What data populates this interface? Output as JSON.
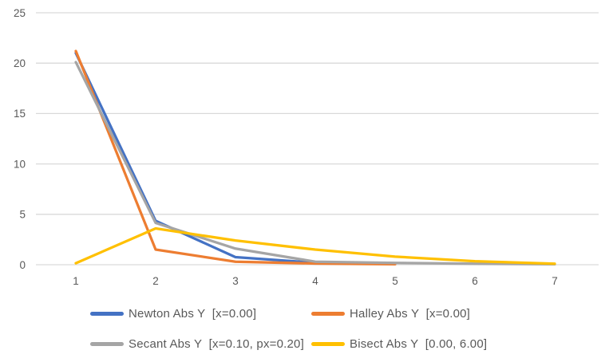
{
  "chart_data": {
    "type": "line",
    "title": "",
    "xlabel": "",
    "ylabel": "",
    "categories": [
      "1",
      "2",
      "3",
      "4",
      "5",
      "6",
      "7"
    ],
    "y_axis": {
      "ticks": [
        0,
        5,
        10,
        15,
        20,
        25
      ],
      "range": [
        0,
        25
      ]
    },
    "x_axis": {
      "ticks": [
        "1",
        "2",
        "3",
        "4",
        "5",
        "6",
        "7"
      ]
    },
    "grid": "horizontal-only",
    "legend_position": "bottom",
    "series": [
      {
        "name": "Newton Abs Y  [x=0.00]",
        "color": "#4472C4",
        "values": [
          21.0,
          4.35,
          0.75,
          0.2
        ]
      },
      {
        "name": "Halley Abs Y  [x=0.00]",
        "color": "#ED7D31",
        "values": [
          21.2,
          1.5,
          0.3,
          0.12,
          0.05
        ]
      },
      {
        "name": "Secant Abs Y  [x=0.10, px=0.20]",
        "color": "#A5A5A5",
        "values": [
          20.1,
          4.15,
          1.6,
          0.3,
          0.18,
          0.1,
          0.05
        ]
      },
      {
        "name": "Bisect Abs Y  [0.00, 6.00]",
        "color": "#FFC000",
        "values": [
          0.15,
          3.6,
          2.4,
          1.5,
          0.8,
          0.35,
          0.1
        ]
      }
    ],
    "colors": {
      "gridline": "#D9D9D9",
      "axis_text": "#595959",
      "background": "#FFFFFF"
    }
  }
}
